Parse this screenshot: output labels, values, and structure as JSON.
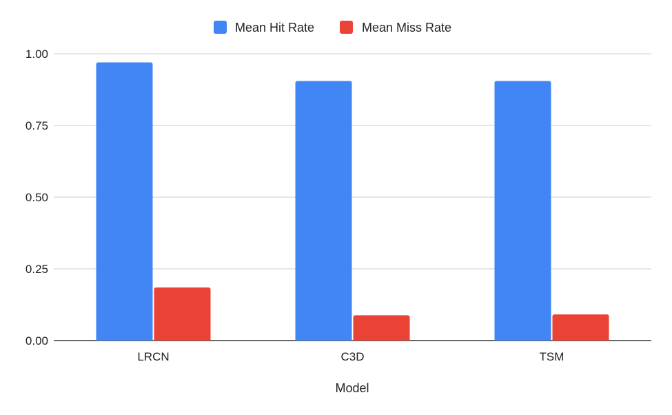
{
  "colors": {
    "hit": "#4285f4",
    "miss": "#ea4335",
    "grid": "#cccccc",
    "axis": "#333333"
  },
  "chart_data": {
    "type": "bar",
    "title": "",
    "xlabel": "Model",
    "ylabel": "",
    "categories": [
      "LRCN",
      "C3D",
      "TSM"
    ],
    "series": [
      {
        "name": "Mean Hit Rate",
        "color": "#4285f4",
        "values": [
          0.97,
          0.905,
          0.905
        ]
      },
      {
        "name": "Mean Miss Rate",
        "color": "#ea4335",
        "values": [
          0.185,
          0.088,
          0.091
        ]
      }
    ],
    "yticks": [
      "0.00",
      "0.25",
      "0.50",
      "0.75",
      "1.00"
    ],
    "ylim": [
      0,
      1
    ],
    "grid": true,
    "legend_position": "top-center"
  }
}
